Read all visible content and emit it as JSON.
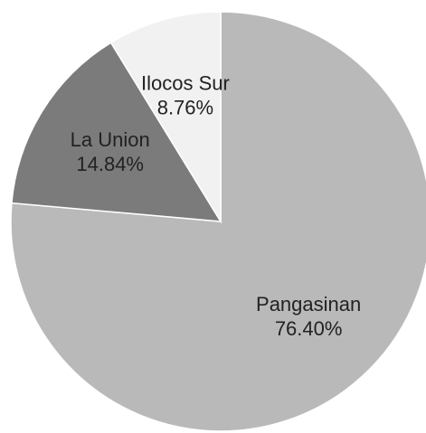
{
  "chart_data": {
    "type": "pie",
    "categories": [
      "Pangasinan",
      "La Union",
      "Ilocos Sur"
    ],
    "values": [
      76.4,
      14.84,
      8.76
    ],
    "value_labels": [
      "76.40%",
      "14.84%",
      "8.76%"
    ],
    "colors": [
      "#b9b9b9",
      "#7b7b7b",
      "#f1f1f1"
    ]
  }
}
